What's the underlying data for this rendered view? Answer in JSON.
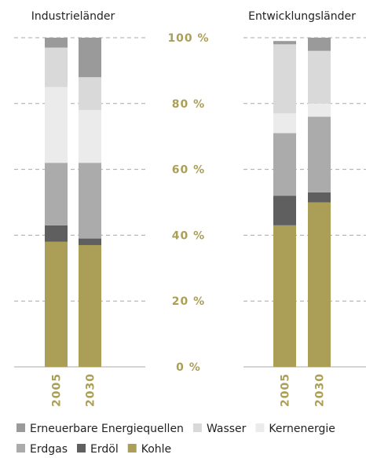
{
  "chart_data": {
    "type": "bar",
    "stacked": true,
    "y_unit": "%",
    "ylim": [
      0,
      100
    ],
    "yticks": [
      0,
      20,
      40,
      60,
      80,
      100
    ],
    "grid": true,
    "legend_position": "bottom",
    "groups": [
      {
        "title": "Industrieländer",
        "categories": [
          "2005",
          "2030"
        ]
      },
      {
        "title": "Entwicklungsländer",
        "categories": [
          "2005",
          "2030"
        ]
      }
    ],
    "series": [
      {
        "name": "Kohle",
        "color": "#ab9f57",
        "values": {
          "Industrieländer": [
            38,
            37
          ],
          "Entwicklungsländer": [
            43,
            50
          ]
        }
      },
      {
        "name": "Erdöl",
        "color": "#5f5f5f",
        "values": {
          "Industrieländer": [
            5,
            2
          ],
          "Entwicklungsländer": [
            9,
            3
          ]
        }
      },
      {
        "name": "Erdgas",
        "color": "#ababab",
        "values": {
          "Industrieländer": [
            19,
            23
          ],
          "Entwicklungsländer": [
            19,
            23
          ]
        }
      },
      {
        "name": "Kernenergie",
        "color": "#ebebeb",
        "values": {
          "Industrieländer": [
            23,
            16
          ],
          "Entwicklungsländer": [
            6,
            4
          ]
        }
      },
      {
        "name": "Wasser",
        "color": "#d9d9d9",
        "values": {
          "Industrieländer": [
            12,
            10
          ],
          "Entwicklungsländer": [
            21,
            16
          ]
        }
      },
      {
        "name": "Erneuerbare Energiequellen",
        "color": "#9a9a9a",
        "values": {
          "Industrieländer": [
            3,
            12
          ],
          "Entwicklungsländer": [
            1,
            4
          ]
        }
      }
    ],
    "legend": {
      "rows": [
        [
          "Erneuerbare Energiequellen",
          "Wasser",
          "Kernenergie"
        ],
        [
          "Erdgas",
          "Erdöl",
          "Kohle"
        ]
      ]
    }
  }
}
